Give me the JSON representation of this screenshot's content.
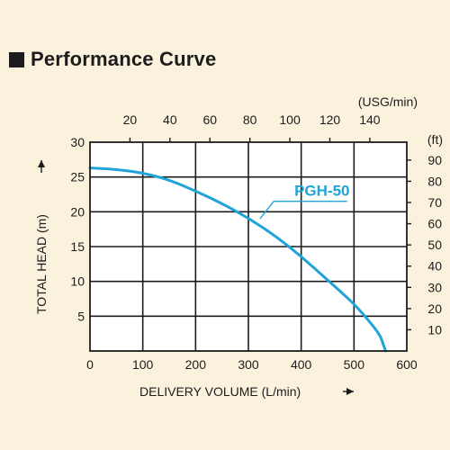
{
  "header": {
    "title": "Performance Curve"
  },
  "colors": {
    "background": "#fbf2dd",
    "plot_background": "#ffffff",
    "grid": "#1c1c1c",
    "curve": "#1fa3d8",
    "text": "#1c1c1c"
  },
  "chart_data": {
    "type": "line",
    "title": "Performance Curve",
    "xlabel": "DELIVERY VOLUME (L/min)",
    "ylabel": "TOTAL HEAD (m)",
    "xlim": [
      0,
      600
    ],
    "ylim": [
      0,
      30
    ],
    "x_ticks": [
      0,
      100,
      200,
      300,
      400,
      500,
      600
    ],
    "y_ticks": [
      5,
      10,
      15,
      20,
      25,
      30
    ],
    "grid": true,
    "secondary_x": {
      "label": "(USG/min)",
      "ticks": [
        20,
        40,
        60,
        80,
        100,
        120,
        140
      ]
    },
    "secondary_y": {
      "label": "(ft)",
      "ticks": [
        10,
        20,
        30,
        40,
        50,
        60,
        70,
        80,
        90
      ]
    },
    "series": [
      {
        "name": "PGH-50",
        "x": [
          0,
          50,
          100,
          150,
          200,
          250,
          300,
          350,
          400,
          450,
          500,
          530,
          550,
          555,
          560
        ],
        "y": [
          26.3,
          26.1,
          25.6,
          24.6,
          23.0,
          21.2,
          19.1,
          16.6,
          13.6,
          10.2,
          6.8,
          4.2,
          2.2,
          1.0,
          0
        ]
      }
    ]
  }
}
